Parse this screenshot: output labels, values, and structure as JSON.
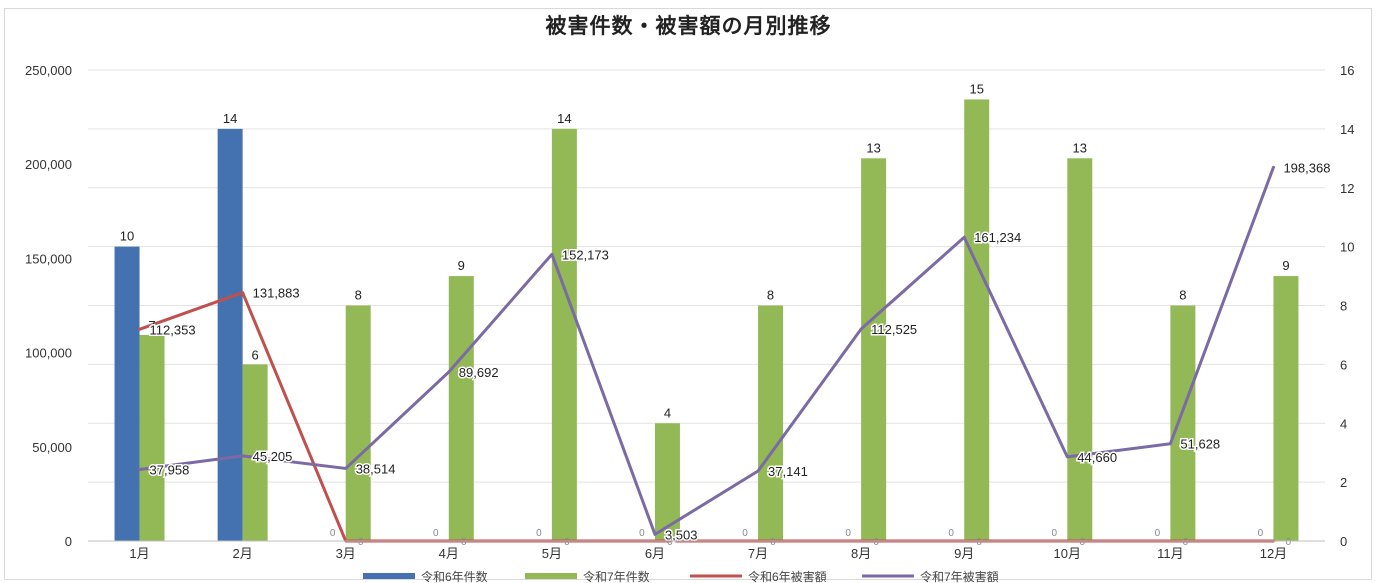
{
  "chart_data": {
    "type": "bar",
    "title": "被害件数・被害額の月別推移",
    "categories": [
      "1月",
      "2月",
      "3月",
      "4月",
      "5月",
      "6月",
      "7月",
      "8月",
      "9月",
      "10月",
      "11月",
      "12月"
    ],
    "y_left": {
      "range": [
        0,
        250000
      ],
      "ticks": [
        0,
        50000,
        100000,
        150000,
        200000,
        250000
      ],
      "tick_labels": [
        "0",
        "50,000",
        "100,000",
        "150,000",
        "200,000",
        "250,000"
      ]
    },
    "y_right": {
      "range": [
        0,
        16
      ],
      "ticks": [
        0,
        2,
        4,
        6,
        8,
        10,
        12,
        14,
        16
      ],
      "tick_labels": [
        "0",
        "2",
        "4",
        "6",
        "8",
        "10",
        "12",
        "14",
        "16"
      ]
    },
    "grid": true,
    "legend_position": "bottom",
    "series": [
      {
        "name": "令和6年件数",
        "kind": "bar",
        "axis": "right",
        "color": "#4472b0",
        "values": [
          10,
          14,
          null,
          null,
          null,
          null,
          null,
          null,
          null,
          null,
          null,
          null
        ],
        "labels": [
          "10",
          "14",
          "",
          "",
          "",
          "",
          "",
          "",
          "",
          "",
          "",
          ""
        ]
      },
      {
        "name": "令和7年件数",
        "kind": "bar",
        "axis": "right",
        "color": "#93b957",
        "values": [
          7,
          6,
          8,
          9,
          14,
          4,
          8,
          13,
          15,
          13,
          8,
          9
        ],
        "labels": [
          "7",
          "6",
          "8",
          "9",
          "14",
          "4",
          "8",
          "13",
          "15",
          "13",
          "8",
          "9"
        ]
      },
      {
        "name": "令和6年被害額",
        "kind": "line",
        "axis": "left",
        "color": "#c0504d",
        "values": [
          112353,
          131883,
          0,
          0,
          0,
          0,
          0,
          0,
          0,
          0,
          0,
          0
        ],
        "labels": [
          "112,353",
          "131,883",
          "",
          "",
          "",
          "",
          "",
          "",
          "",
          "",
          "",
          ""
        ]
      },
      {
        "name": "令和7年被害額",
        "kind": "line",
        "axis": "left",
        "color": "#7b6aa3",
        "values": [
          37958,
          45205,
          38514,
          89692,
          152173,
          3503,
          37141,
          112525,
          161234,
          44660,
          51628,
          198368
        ],
        "labels": [
          "37,958",
          "45,205",
          "38,514",
          "89,692",
          "152,173",
          "3,503",
          "37,141",
          "112,525",
          "161,234",
          "44,660",
          "51,628",
          "198,368"
        ]
      }
    ],
    "zero_marker_label": "0"
  }
}
